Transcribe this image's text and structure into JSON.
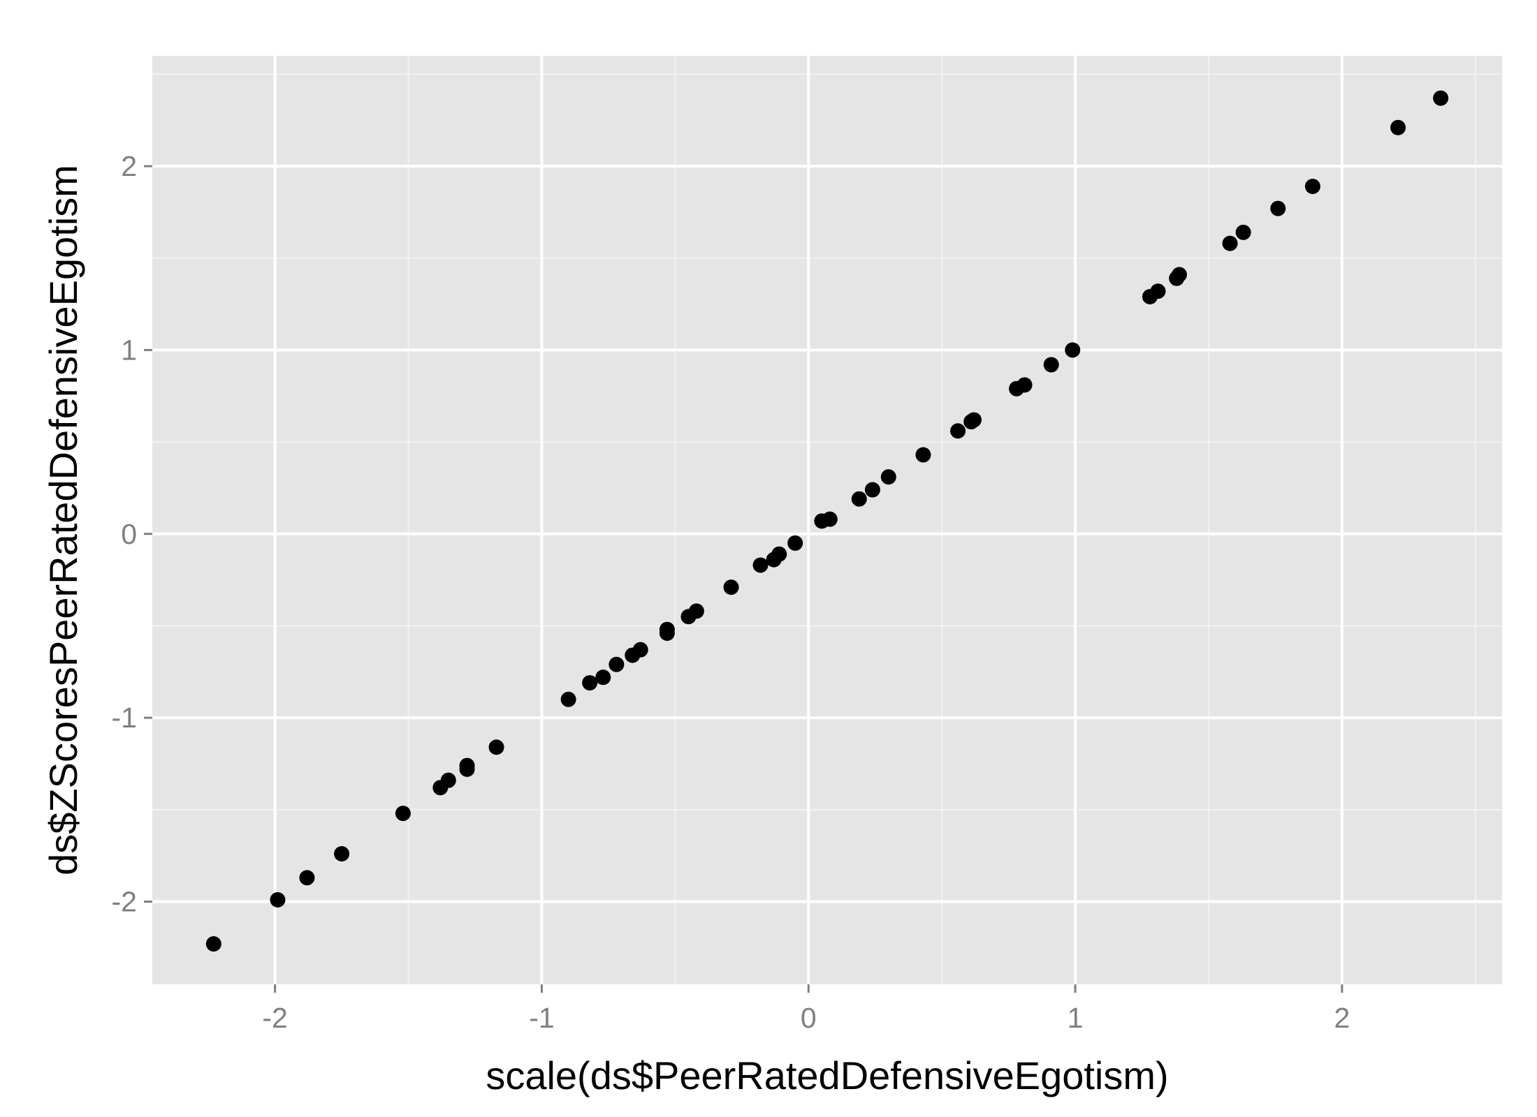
{
  "chart_data": {
    "type": "scatter",
    "xlabel": "scale(ds$PeerRatedDefensiveEgotism)",
    "ylabel": "ds$ZScoresPeerRatedDefensiveEgotism",
    "xlim": [
      -2.46,
      2.6
    ],
    "ylim": [
      -2.45,
      2.6
    ],
    "x_ticks": [
      -2,
      -1,
      0,
      1,
      2
    ],
    "y_ticks": [
      -2,
      -1,
      0,
      1,
      2
    ],
    "x_tick_labels": [
      "-2",
      "-1",
      "0",
      "1",
      "2"
    ],
    "y_tick_labels": [
      "-2",
      "-1",
      "0",
      "1",
      "2"
    ],
    "grid": true,
    "panel_background": "#e5e5e5",
    "grid_color": "#ffffff",
    "point_color": "#000000",
    "points": [
      {
        "x": -2.23,
        "y": -2.23
      },
      {
        "x": -1.99,
        "y": -1.99
      },
      {
        "x": -1.88,
        "y": -1.87
      },
      {
        "x": -1.75,
        "y": -1.74
      },
      {
        "x": -1.52,
        "y": -1.52
      },
      {
        "x": -1.38,
        "y": -1.38
      },
      {
        "x": -1.35,
        "y": -1.34
      },
      {
        "x": -1.28,
        "y": -1.28
      },
      {
        "x": -1.28,
        "y": -1.26
      },
      {
        "x": -1.17,
        "y": -1.16
      },
      {
        "x": -0.9,
        "y": -0.9
      },
      {
        "x": -0.82,
        "y": -0.81
      },
      {
        "x": -0.77,
        "y": -0.78
      },
      {
        "x": -0.72,
        "y": -0.71
      },
      {
        "x": -0.66,
        "y": -0.66
      },
      {
        "x": -0.63,
        "y": -0.63
      },
      {
        "x": -0.53,
        "y": -0.54
      },
      {
        "x": -0.53,
        "y": -0.52
      },
      {
        "x": -0.45,
        "y": -0.45
      },
      {
        "x": -0.42,
        "y": -0.42
      },
      {
        "x": -0.29,
        "y": -0.29
      },
      {
        "x": -0.18,
        "y": -0.17
      },
      {
        "x": -0.13,
        "y": -0.14
      },
      {
        "x": -0.11,
        "y": -0.11
      },
      {
        "x": -0.05,
        "y": -0.05
      },
      {
        "x": 0.05,
        "y": 0.07
      },
      {
        "x": 0.08,
        "y": 0.08
      },
      {
        "x": 0.19,
        "y": 0.19
      },
      {
        "x": 0.24,
        "y": 0.24
      },
      {
        "x": 0.3,
        "y": 0.31
      },
      {
        "x": 0.43,
        "y": 0.43
      },
      {
        "x": 0.56,
        "y": 0.56
      },
      {
        "x": 0.61,
        "y": 0.61
      },
      {
        "x": 0.62,
        "y": 0.62
      },
      {
        "x": 0.78,
        "y": 0.79
      },
      {
        "x": 0.81,
        "y": 0.81
      },
      {
        "x": 0.91,
        "y": 0.92
      },
      {
        "x": 0.99,
        "y": 1.0
      },
      {
        "x": 1.28,
        "y": 1.29
      },
      {
        "x": 1.31,
        "y": 1.32
      },
      {
        "x": 1.38,
        "y": 1.39
      },
      {
        "x": 1.39,
        "y": 1.41
      },
      {
        "x": 1.58,
        "y": 1.58
      },
      {
        "x": 1.63,
        "y": 1.64
      },
      {
        "x": 1.76,
        "y": 1.77
      },
      {
        "x": 1.89,
        "y": 1.89
      },
      {
        "x": 2.21,
        "y": 2.21
      },
      {
        "x": 2.37,
        "y": 2.37
      }
    ]
  }
}
